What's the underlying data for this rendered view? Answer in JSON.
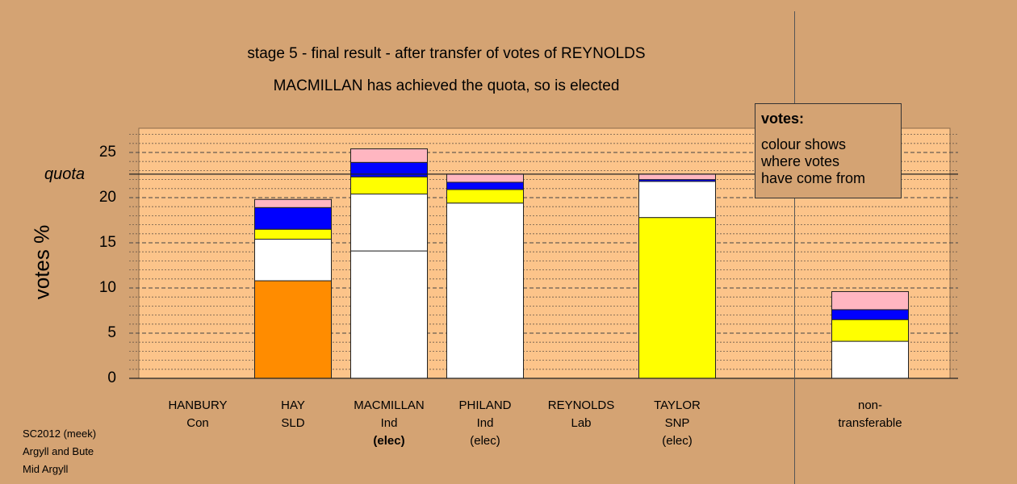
{
  "title": "stage 5 - final result - after transfer of votes of REYNOLDS",
  "subtitle": "MACMILLAN has achieved the quota, so is elected",
  "ylabel": "votes %",
  "quota_label": "quota",
  "legend": {
    "title": "votes:",
    "lines": [
      "colour shows",
      "where votes",
      "have come from"
    ]
  },
  "footer": [
    "SC2012 (meek)",
    "Argyll and Bute",
    "Mid Argyll"
  ],
  "colors": {
    "background": "#d4a373",
    "plot_bg": "#fcc48a",
    "orange": "#ff8c00",
    "white": "#ffffff",
    "yellow": "#ffff00",
    "blue": "#0000ff",
    "pink": "#ffb6c1"
  },
  "candidates": [
    {
      "lines": [
        "HANBURY",
        "Con"
      ],
      "strong": []
    },
    {
      "lines": [
        "HAY",
        "SLD"
      ],
      "strong": []
    },
    {
      "lines": [
        "MACMILLAN",
        "Ind",
        "(elec)"
      ],
      "strong": [
        2
      ]
    },
    {
      "lines": [
        "PHILAND",
        "Ind",
        "(elec)"
      ],
      "strong": []
    },
    {
      "lines": [
        "REYNOLDS",
        "Lab"
      ],
      "strong": []
    },
    {
      "lines": [
        "TAYLOR",
        "SNP",
        "(elec)"
      ],
      "strong": []
    },
    {
      "lines": [
        "non-",
        "transferable"
      ],
      "strong": []
    }
  ],
  "chart_data": {
    "type": "bar",
    "stacked": true,
    "categories": [
      "HANBURY Con",
      "HAY SLD",
      "MACMILLAN Ind",
      "PHILAND Ind",
      "REYNOLDS Lab",
      "TAYLOR SNP",
      "non-transferable"
    ],
    "quota": 22.6,
    "ylim": [
      0,
      27.5
    ],
    "yticks": [
      0,
      5,
      10,
      15,
      20,
      25
    ],
    "ylabel": "votes %",
    "grid": "dotted horizontal",
    "bars": [
      {
        "category": "HANBURY Con",
        "segments": []
      },
      {
        "category": "HAY SLD",
        "segments": [
          {
            "color": "orange",
            "value": 10.8
          },
          {
            "color": "white",
            "value": 4.6
          },
          {
            "color": "yellow",
            "value": 1.1
          },
          {
            "color": "blue",
            "value": 2.4
          },
          {
            "color": "pink",
            "value": 0.9
          }
        ]
      },
      {
        "category": "MACMILLAN Ind",
        "segments": [
          {
            "color": "white",
            "value": 14.1
          },
          {
            "color": "white",
            "value": 6.3
          },
          {
            "color": "yellow",
            "value": 1.9
          },
          {
            "color": "blue",
            "value": 1.6
          },
          {
            "color": "pink",
            "value": 1.5
          }
        ]
      },
      {
        "category": "PHILAND Ind",
        "segments": [
          {
            "color": "white",
            "value": 19.4
          },
          {
            "color": "yellow",
            "value": 1.5
          },
          {
            "color": "blue",
            "value": 0.8
          },
          {
            "color": "pink",
            "value": 0.9
          }
        ]
      },
      {
        "category": "REYNOLDS Lab",
        "segments": []
      },
      {
        "category": "TAYLOR SNP",
        "segments": [
          {
            "color": "yellow",
            "value": 17.8
          },
          {
            "color": "white",
            "value": 4.0
          },
          {
            "color": "blue",
            "value": 0.2
          },
          {
            "color": "pink",
            "value": 0.6
          }
        ]
      },
      {
        "category": "non-transferable",
        "segments": [
          {
            "color": "white",
            "value": 4.1
          },
          {
            "color": "yellow",
            "value": 2.4
          },
          {
            "color": "blue",
            "value": 1.1
          },
          {
            "color": "pink",
            "value": 2.0
          }
        ]
      }
    ]
  }
}
